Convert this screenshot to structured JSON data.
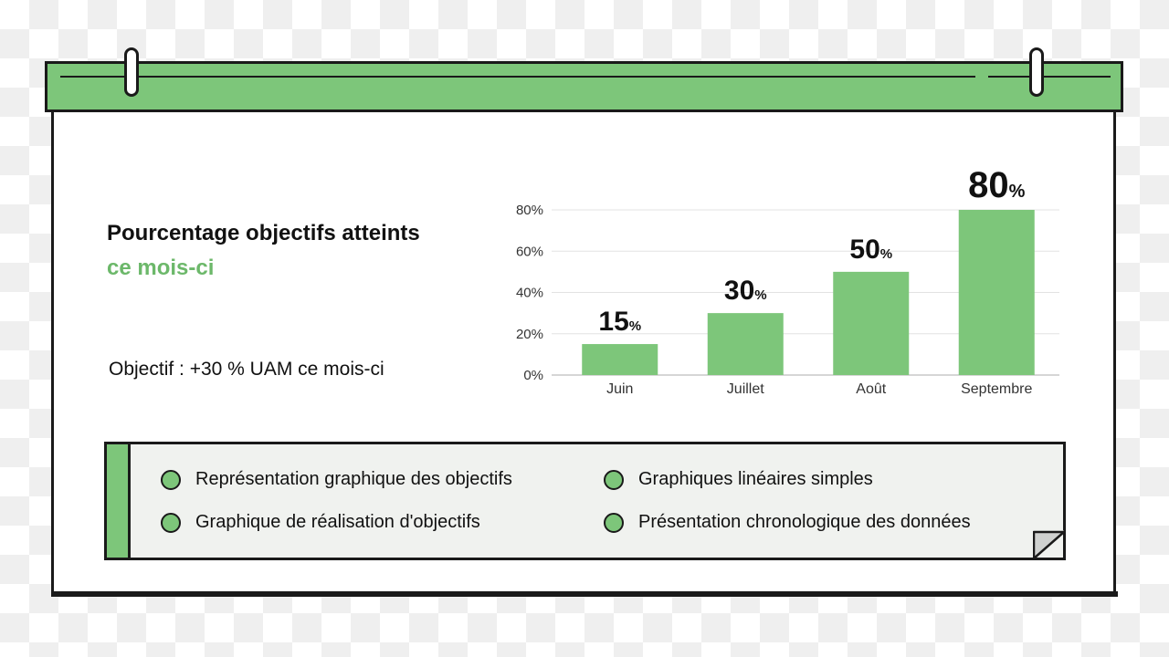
{
  "title": {
    "line1": "Pourcentage objectifs atteints",
    "line2": "ce mois-ci"
  },
  "objective": "Objectif : +30 % UAM ce mois-ci",
  "chart_data": {
    "type": "bar",
    "categories": [
      "Juin",
      "Juillet",
      "Août",
      "Septembre"
    ],
    "values": [
      15,
      30,
      50,
      80
    ],
    "value_labels": [
      "15",
      "30",
      "50",
      "80"
    ],
    "value_suffix": "%",
    "yticks": [
      "0%",
      "20%",
      "40%",
      "60%",
      "80%"
    ],
    "ylim": [
      0,
      80
    ],
    "grid": true,
    "bar_color": "#7dc67a"
  },
  "legend": {
    "items": [
      "Représentation graphique des objectifs",
      "Graphique de réalisation d'objectifs",
      "Graphiques linéaires simples",
      "Présentation chronologique des données"
    ]
  },
  "colors": {
    "accent": "#7dc67a",
    "accent_text": "#6cb86a",
    "outline": "#1a1a1a",
    "panel": "#f0f2ef"
  }
}
